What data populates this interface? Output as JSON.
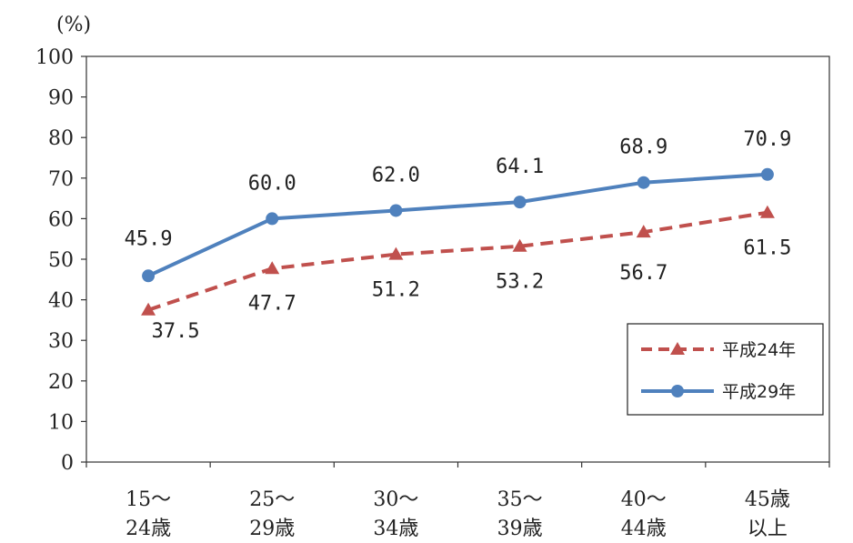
{
  "chart_data": {
    "type": "line",
    "unit_label": "(%)",
    "ylim": [
      0,
      100
    ],
    "yticks": [
      "0",
      "10",
      "20",
      "30",
      "40",
      "50",
      "60",
      "70",
      "80",
      "90",
      "100"
    ],
    "categories": [
      [
        "15～",
        "24歳"
      ],
      [
        "25～",
        "29歳"
      ],
      [
        "30～",
        "34歳"
      ],
      [
        "35～",
        "39歳"
      ],
      [
        "40～",
        "44歳"
      ],
      [
        "45歳",
        "以上"
      ]
    ],
    "series": [
      {
        "name": "平成24年",
        "values": [
          37.5,
          47.7,
          51.2,
          53.2,
          56.7,
          61.5
        ],
        "labels": [
          "37.5",
          "47.7",
          "51.2",
          "53.2",
          "56.7",
          "61.5"
        ],
        "color": "#c0504d",
        "marker": "triangle",
        "dashed": true
      },
      {
        "name": "平成29年",
        "values": [
          45.9,
          60.0,
          62.0,
          64.1,
          68.9,
          70.9
        ],
        "labels": [
          "45.9",
          "60.0",
          "62.0",
          "64.1",
          "68.9",
          "70.9"
        ],
        "color": "#4f81bd",
        "marker": "circle",
        "dashed": false
      }
    ],
    "grid": false,
    "legend_position": "bottom-right"
  }
}
